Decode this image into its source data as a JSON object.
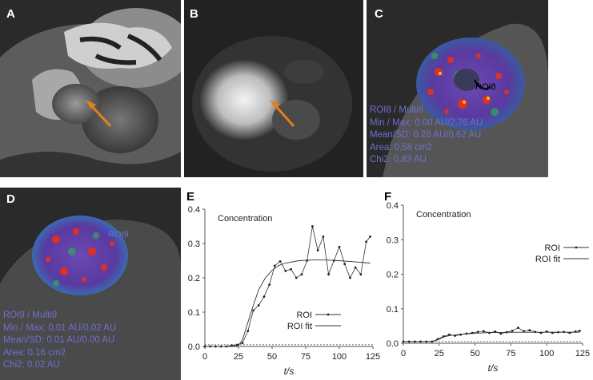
{
  "panels": {
    "a": {
      "letter": "A"
    },
    "b": {
      "letter": "B"
    },
    "c": {
      "letter": "C",
      "roi_tag": "ROI8",
      "lines": [
        "ROI8 / Multi8",
        "Min / Max: 0.00 AU/2.76 AU",
        "Mean/SD: 0.28 AU/0.62 AU",
        "Area: 0.58 cm2",
        "Chi2: 0.83 AU"
      ]
    },
    "d": {
      "letter": "D",
      "roi_tag": "ROI9",
      "lines": [
        "ROI9 / Multi9",
        "Min / Max: 0.01 AU/0.02 AU",
        "Mean/SD: 0.01 AU/0.00 AU",
        "Area: 0.16 cm2",
        "Chi2: 0.02 AU"
      ]
    },
    "e": {
      "letter": "E"
    },
    "f": {
      "letter": "F"
    }
  },
  "colors": {
    "arrow": "#e67e22",
    "overlay_text": "#6f6fd0",
    "perfusion_hot": "#e03020",
    "perfusion_base": "#5a3aa0"
  },
  "chart_data": [
    {
      "id": "E",
      "type": "line",
      "title": "Concentration",
      "xlabel": "t/s",
      "ylabel": "",
      "xlim": [
        0,
        125
      ],
      "ylim": [
        0,
        0.4
      ],
      "xticks": [
        0,
        25,
        50,
        75,
        100,
        125
      ],
      "yticks": [
        0.0,
        0.1,
        0.2,
        0.3,
        0.4
      ],
      "ytick_labels": [
        "0.0",
        "0.1",
        "0.2",
        "0.3",
        "0.4"
      ],
      "legend": "bottom-right",
      "series": [
        {
          "name": "ROI",
          "style": "line-markers",
          "x": [
            0,
            4,
            8,
            12,
            16,
            20,
            24,
            28,
            32,
            36,
            40,
            44,
            48,
            52,
            56,
            60,
            64,
            68,
            72,
            76,
            80,
            84,
            88,
            92,
            96,
            100,
            104,
            108,
            112,
            116,
            120,
            123
          ],
          "y": [
            0.0,
            0.0,
            0.0,
            0.0,
            0.0,
            0.003,
            0.005,
            0.01,
            0.045,
            0.105,
            0.12,
            0.145,
            0.18,
            0.235,
            0.248,
            0.22,
            0.225,
            0.2,
            0.21,
            0.25,
            0.35,
            0.28,
            0.32,
            0.21,
            0.25,
            0.29,
            0.24,
            0.2,
            0.23,
            0.21,
            0.305,
            0.32
          ]
        },
        {
          "name": "ROI fit",
          "style": "line",
          "x": [
            0,
            10,
            20,
            25,
            28,
            32,
            36,
            40,
            45,
            50,
            55,
            60,
            70,
            80,
            90,
            100,
            110,
            123
          ],
          "y": [
            0.0,
            0.0,
            0.0,
            0.003,
            0.02,
            0.07,
            0.12,
            0.165,
            0.2,
            0.222,
            0.236,
            0.243,
            0.25,
            0.252,
            0.252,
            0.25,
            0.247,
            0.243
          ]
        }
      ],
      "baseline": 0.005
    },
    {
      "id": "F",
      "type": "line",
      "title": "Concentration",
      "xlabel": "t/s",
      "ylabel": "",
      "xlim": [
        0,
        125
      ],
      "ylim": [
        0,
        0.4
      ],
      "xticks": [
        0,
        25,
        50,
        75,
        100,
        125
      ],
      "yticks": [
        0.0,
        0.1,
        0.2,
        0.3,
        0.4
      ],
      "ytick_labels": [
        "0.0",
        "0.1",
        "0.2",
        "0.3",
        "0.4"
      ],
      "legend": "right",
      "series": [
        {
          "name": "ROI",
          "style": "line-markers",
          "x": [
            0,
            4,
            8,
            12,
            16,
            20,
            24,
            28,
            32,
            36,
            40,
            44,
            48,
            52,
            56,
            60,
            64,
            68,
            72,
            76,
            80,
            84,
            88,
            92,
            96,
            100,
            104,
            108,
            112,
            116,
            120,
            123
          ],
          "y": [
            0.005,
            0.005,
            0.005,
            0.005,
            0.005,
            0.005,
            0.012,
            0.02,
            0.025,
            0.022,
            0.025,
            0.028,
            0.03,
            0.033,
            0.035,
            0.03,
            0.034,
            0.028,
            0.032,
            0.036,
            0.045,
            0.035,
            0.038,
            0.033,
            0.03,
            0.034,
            0.03,
            0.032,
            0.033,
            0.03,
            0.034,
            0.036
          ]
        },
        {
          "name": "ROI fit",
          "style": "line",
          "x": [
            0,
            10,
            20,
            24,
            28,
            32,
            40,
            50,
            60,
            80,
            100,
            123
          ],
          "y": [
            0.005,
            0.005,
            0.005,
            0.01,
            0.018,
            0.022,
            0.026,
            0.029,
            0.031,
            0.032,
            0.032,
            0.032
          ]
        }
      ],
      "baseline": 0.005
    }
  ]
}
